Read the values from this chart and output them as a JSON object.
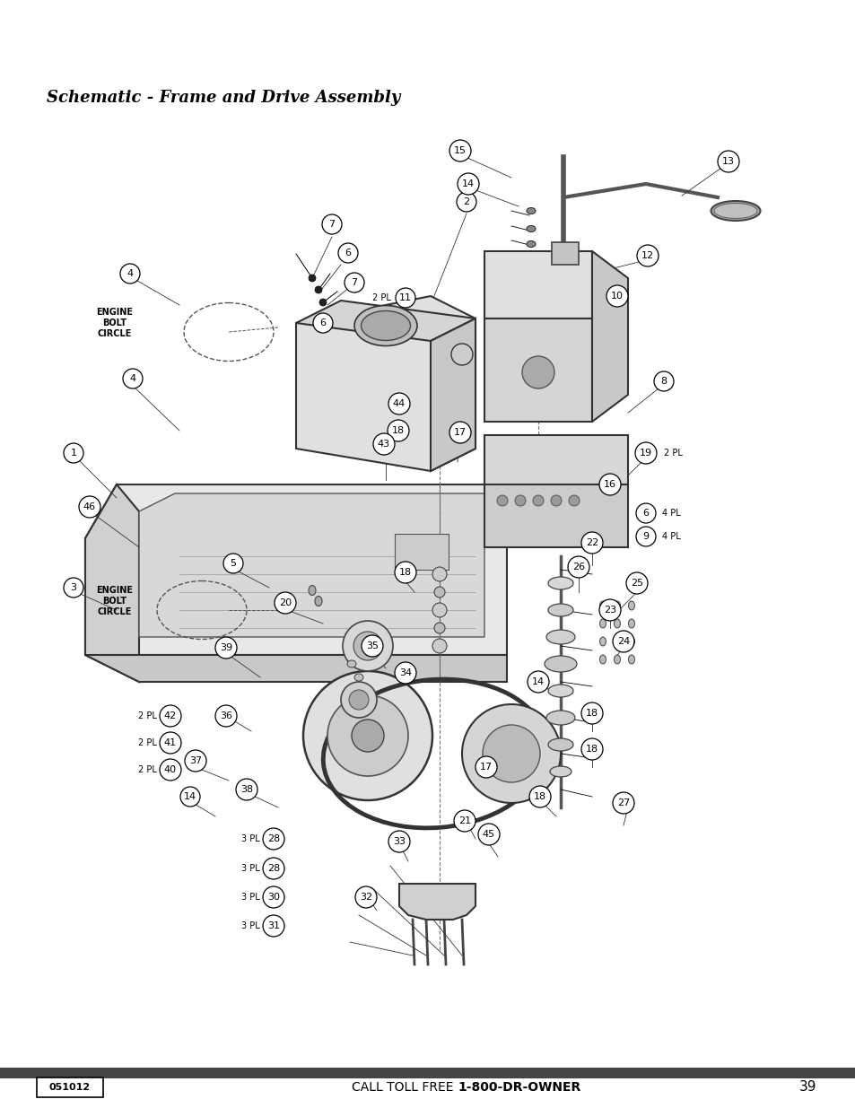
{
  "title": "Schematic - Frame and Drive Assembly",
  "bg_color": "#ffffff",
  "page_number": "39",
  "footer_text": "CALL TOLL FREE ",
  "footer_bold": "1-800-DR-OWNER",
  "part_number": "051012",
  "bottom_bar_color": "#444444",
  "fig_width": 9.54,
  "fig_height": 12.35,
  "dpi": 100
}
